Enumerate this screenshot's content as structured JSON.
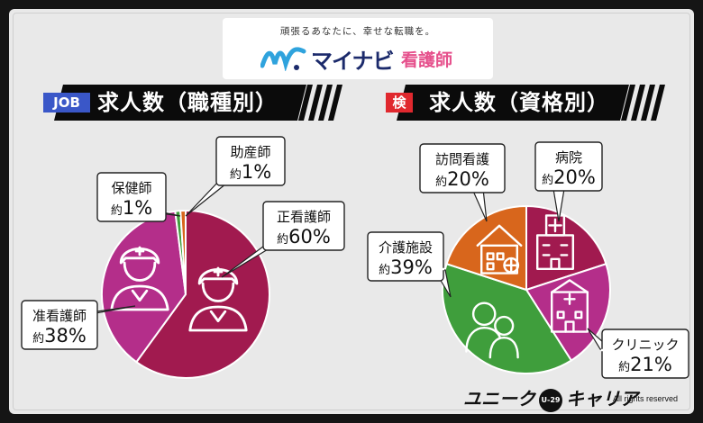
{
  "logo": {
    "tagline": "頑張るあなたに、幸せな転職を。",
    "brand": "マイナビ",
    "sub": "看護師"
  },
  "banners": {
    "left": {
      "badge": "JOB",
      "title": "求人数（職種別）",
      "badge_color": "#3a57c8"
    },
    "right": {
      "badge": "検",
      "title": "求人数（資格別）",
      "badge_color": "#e0282e"
    }
  },
  "chart_data": [
    {
      "type": "pie",
      "title": "求人数（職種別）",
      "slices": [
        {
          "label": "正看護師",
          "value_label": "約60%",
          "value": 60,
          "color": "#a11a4f",
          "icon": "nurse-icon"
        },
        {
          "label": "准看護師",
          "value_label": "約38%",
          "value": 38,
          "color": "#b42e8a",
          "icon": "nurse-icon"
        },
        {
          "label": "保健師",
          "value_label": "約1%",
          "value": 1,
          "color": "#3f9e3c",
          "icon": ""
        },
        {
          "label": "助産師",
          "value_label": "約1%",
          "value": 1,
          "color": "#d8661c",
          "icon": ""
        }
      ]
    },
    {
      "type": "pie",
      "title": "求人数（資格別）",
      "slices": [
        {
          "label": "病院",
          "value_label": "約20%",
          "value": 20,
          "color": "#a11a4f",
          "icon": "hospital-icon"
        },
        {
          "label": "クリニック",
          "value_label": "約21%",
          "value": 21,
          "color": "#b42e8a",
          "icon": "clinic-icon"
        },
        {
          "label": "介護施設",
          "value_label": "約39%",
          "value": 39,
          "color": "#3f9e3c",
          "icon": "caregivers-icon"
        },
        {
          "label": "訪問看護",
          "value_label": "約20%",
          "value": 20,
          "color": "#d8661c",
          "icon": "home-care-icon"
        }
      ]
    }
  ],
  "footer": {
    "brand_left": "ユニーク",
    "badge": "U-29",
    "brand_right": "キャリア",
    "rights": "All rights reserved"
  }
}
